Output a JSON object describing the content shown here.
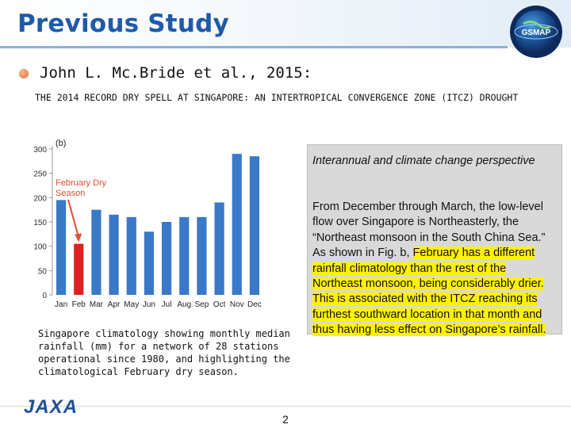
{
  "slide": {
    "title": "Previous Study",
    "logo_text": "GSMAP",
    "author": "John L. Mc.Bride et al., 2015:",
    "paper_title": "THE 2014 RECORD DRY SPELL AT SINGAPORE: AN INTERTROPICAL CONVERGENCE ZONE (ITCZ) DROUGHT",
    "caption": "Singapore climatology showing monthly median rainfall (mm) for a network of 28 stations operational since 1980, and highlighting the climatological February dry season.",
    "box": {
      "heading": "Interannual and climate change perspective",
      "body_before": "From December through March, the low-level flow over Singapore is Northeasterly, the “Northeast monsoon in the South China Sea.” As shown in Fig. b, ",
      "body_highlight": "February has a different rainfall climatology than the rest of the Northeast monsoon, being considerably drier. This is associated with the ITCZ reaching its furthest southward location in that month and thus having less effect on Singapore’s rainfall.",
      "highlight_color": "#fff200"
    },
    "footer_logo": "JAXA",
    "page_number": "2"
  },
  "chart_data": {
    "type": "bar",
    "panel_label": "(b)",
    "annotation": "February Dry Season",
    "categories": [
      "Jan",
      "Feb",
      "Mar",
      "Apr",
      "May",
      "Jun",
      "Jul",
      "Aug",
      "Sep",
      "Oct",
      "Nov",
      "Dec"
    ],
    "values": [
      195,
      105,
      175,
      165,
      160,
      130,
      150,
      160,
      160,
      190,
      290,
      285
    ],
    "ylim": [
      0,
      300
    ],
    "yticks": [
      0,
      50,
      100,
      150,
      200,
      250,
      300
    ],
    "bar_color": "#3a78c8",
    "highlight_index": 1,
    "highlight_color": "#e02020",
    "annotation_color": "#e05030",
    "grid": false
  }
}
